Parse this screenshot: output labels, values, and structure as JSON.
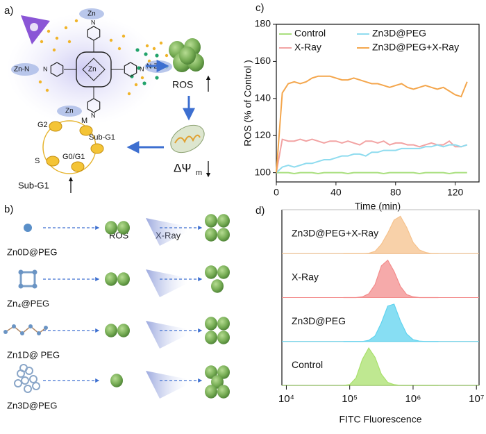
{
  "panels": {
    "a": {
      "label": "a)",
      "zn_top": "Zn",
      "zn_left": "Zn-N",
      "zn_right": "N-Zn",
      "zn_bottom": "Zn",
      "zn_center": "Zn",
      "pyridine_n": [
        "N",
        "N",
        "N",
        "N"
      ],
      "ros": "ROS",
      "delta_psi": "ΔΨ",
      "delta_psi_sub": "m",
      "cycle": [
        "G2",
        "M",
        "Sub-G1",
        "S",
        "G0/G1"
      ],
      "sub_g1": "Sub-G1"
    },
    "b": {
      "label": "b)",
      "col_ros": "ROS",
      "col_xray": "X-Ray",
      "rows": [
        "Zn0D@PEG",
        "Zn₄@PEG",
        "Zn1D@ PEG",
        "Zn3D@PEG"
      ]
    },
    "c": {
      "label": "c)"
    },
    "d": {
      "label": "d)"
    }
  },
  "chart_data": [
    {
      "type": "line",
      "xlabel": "Time (min)",
      "ylabel": "ROS (% of Control )",
      "x": [
        0,
        4,
        8,
        12,
        16,
        20,
        24,
        28,
        32,
        36,
        40,
        44,
        48,
        52,
        56,
        60,
        64,
        68,
        72,
        76,
        80,
        84,
        88,
        92,
        96,
        100,
        104,
        108,
        112,
        116,
        120,
        124,
        128
      ],
      "xlim": [
        0,
        136
      ],
      "xticks": [
        0,
        40,
        80,
        120
      ],
      "ylim": [
        95,
        180
      ],
      "yticks": [
        100,
        120,
        140,
        160,
        180
      ],
      "legend": "top-left",
      "series": [
        {
          "name": "Control",
          "color": "#a9df7e",
          "values": [
            100,
            100,
            100,
            99.5,
            100,
            100,
            100,
            99.5,
            100,
            100,
            100,
            100,
            99.5,
            100,
            100,
            100,
            100,
            100,
            99.5,
            100,
            100,
            100,
            100,
            100,
            99.5,
            100,
            100,
            100,
            100,
            99.5,
            100,
            100,
            100
          ]
        },
        {
          "name": "X-Ray",
          "color": "#f2a3a3",
          "values": [
            100,
            118,
            117,
            117,
            118,
            117,
            118,
            117,
            116,
            117,
            117,
            116,
            117,
            116,
            115,
            117,
            117,
            116,
            117,
            115,
            116,
            116,
            115,
            115,
            114,
            115,
            116,
            115,
            115,
            117,
            114,
            114,
            115
          ]
        },
        {
          "name": "Zn3D@PEG",
          "color": "#8fdcef",
          "values": [
            100,
            103,
            104,
            103,
            104,
            105,
            105,
            106,
            107,
            107,
            108,
            109,
            109,
            110,
            110,
            109,
            111,
            111,
            112,
            112,
            112,
            113,
            113,
            113,
            113,
            114,
            114,
            115,
            114,
            115,
            115,
            114,
            115
          ]
        },
        {
          "name": "Zn3D@PEG+X-Ray",
          "color": "#f4a64c",
          "values": [
            100,
            143,
            148,
            149,
            148,
            149,
            151,
            152,
            152,
            152,
            151,
            150,
            150,
            151,
            150,
            149,
            148,
            148,
            147,
            146,
            147,
            148,
            146,
            145,
            146,
            147,
            146,
            145,
            146,
            144,
            142,
            141,
            149
          ]
        }
      ]
    },
    {
      "type": "ridgeline",
      "xlabel": "FITC Fluorescence",
      "xscale": "log",
      "x": [
        79433,
        100000,
        125893,
        158489,
        199526,
        251189,
        316228,
        398107,
        501187,
        630957,
        794328,
        1000000,
        1258925,
        1584893,
        1995262,
        2511886
      ],
      "xlim": [
        8500,
        11000000
      ],
      "xticks": [
        {
          "value": 10000,
          "label": "10⁴"
        },
        {
          "value": 100000,
          "label": "10⁵"
        },
        {
          "value": 1000000,
          "label": "10⁶"
        },
        {
          "value": 10000000,
          "label": "10⁷"
        }
      ],
      "series": [
        {
          "name": "Control",
          "color": "#a9e06c",
          "values": [
            0,
            2,
            20,
            70,
            100,
            75,
            30,
            8,
            2,
            0,
            0,
            0,
            0,
            0,
            0,
            0
          ]
        },
        {
          "name": "Zn3D@PEG",
          "color": "#5fd3ef",
          "values": [
            0,
            0,
            0,
            0,
            3,
            15,
            50,
            95,
            100,
            55,
            20,
            5,
            1,
            0,
            0,
            0
          ]
        },
        {
          "name": "X-Ray",
          "color": "#f38d8d",
          "values": [
            0,
            0,
            0,
            2,
            10,
            35,
            85,
            100,
            70,
            30,
            8,
            2,
            0,
            0,
            0,
            0
          ]
        },
        {
          "name": "Zn3D@PEG+X-Ray",
          "color": "#f6c28c",
          "values": [
            0,
            0,
            0,
            0,
            1,
            6,
            25,
            55,
            90,
            100,
            70,
            30,
            10,
            3,
            0,
            0
          ]
        }
      ]
    }
  ]
}
